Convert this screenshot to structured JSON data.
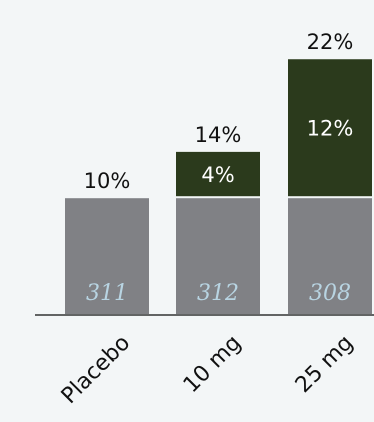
{
  "chart_data": {
    "type": "bar",
    "stacked": true,
    "title": "",
    "xlabel": "",
    "ylabel": "",
    "ylim": [
      0,
      24
    ],
    "grid": false,
    "legend": "none",
    "categories": [
      "Placebo",
      "10 mg",
      "25 mg"
    ],
    "series": [
      {
        "values": [
          10,
          10,
          10
        ],
        "color": "#808185"
      },
      {
        "values": [
          0,
          4,
          12
        ],
        "color": "#2b3a1c"
      }
    ],
    "totals": [
      10,
      14,
      22
    ],
    "total_labels": [
      "10%",
      "14%",
      "22%"
    ],
    "increment_labels": [
      "",
      "4%",
      "12%"
    ],
    "n_labels": [
      "311",
      "312",
      "308"
    ]
  }
}
